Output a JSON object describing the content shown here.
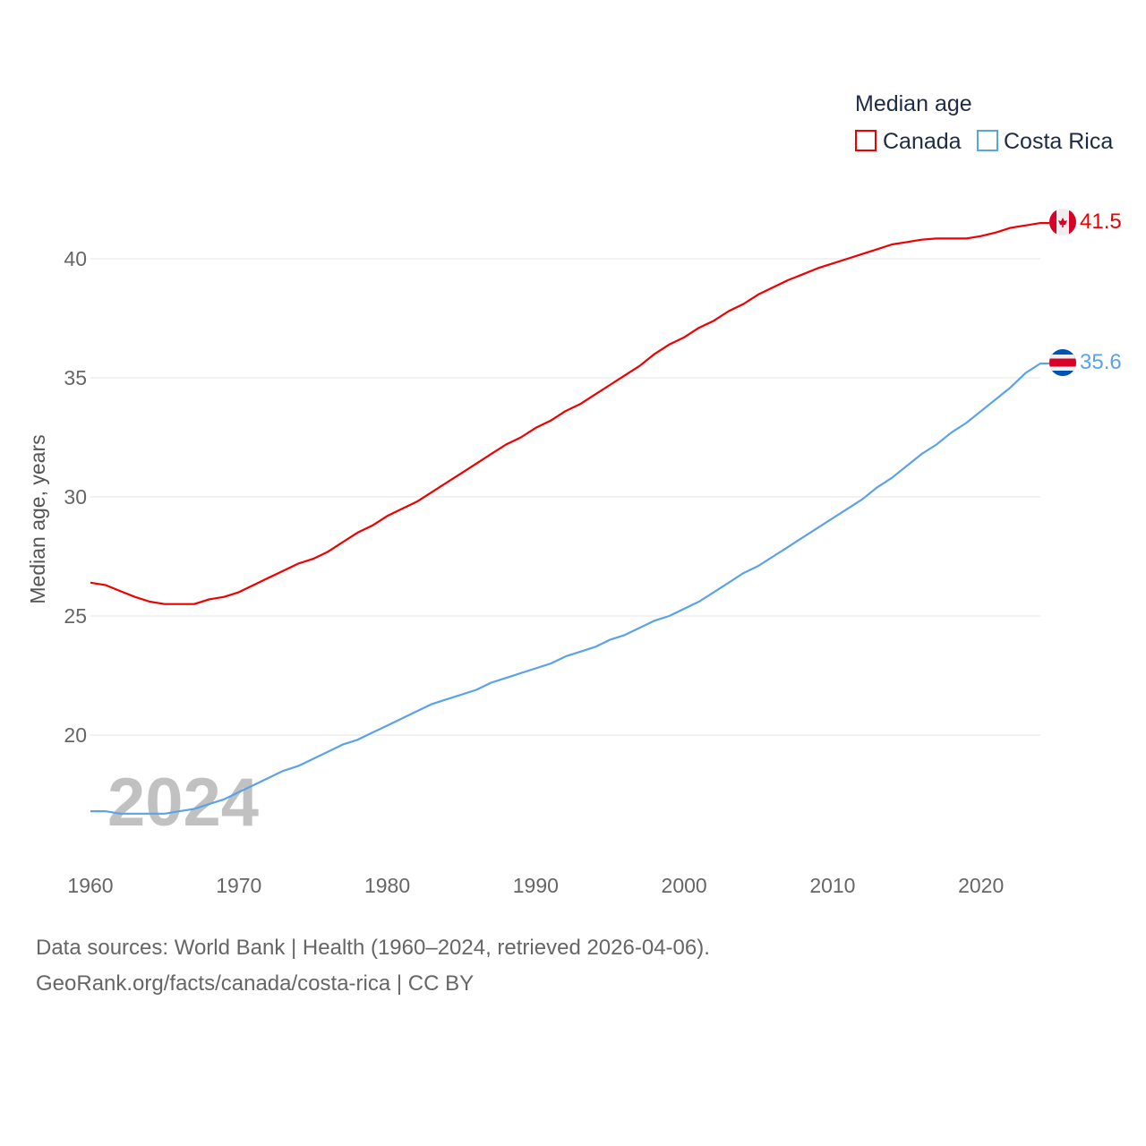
{
  "chart_data": {
    "type": "line",
    "title": "",
    "xlabel": "",
    "ylabel": "Median age, years",
    "xlim": [
      1960,
      2024
    ],
    "ylim": [
      15.5,
      42
    ],
    "yticks": [
      20,
      25,
      30,
      35,
      40
    ],
    "xticks": [
      1960,
      1970,
      1980,
      1990,
      2000,
      2010,
      2020
    ],
    "grid": true,
    "legend": {
      "title": "Median age",
      "placement": "top-right"
    },
    "year_watermark": "2024",
    "x": [
      1960,
      1961,
      1962,
      1963,
      1964,
      1965,
      1966,
      1967,
      1968,
      1969,
      1970,
      1971,
      1972,
      1973,
      1974,
      1975,
      1976,
      1977,
      1978,
      1979,
      1980,
      1981,
      1982,
      1983,
      1984,
      1985,
      1986,
      1987,
      1988,
      1989,
      1990,
      1991,
      1992,
      1993,
      1994,
      1995,
      1996,
      1997,
      1998,
      1999,
      2000,
      2001,
      2002,
      2003,
      2004,
      2005,
      2006,
      2007,
      2008,
      2009,
      2010,
      2011,
      2012,
      2013,
      2014,
      2015,
      2016,
      2017,
      2018,
      2019,
      2020,
      2021,
      2022,
      2023,
      2024
    ],
    "series": [
      {
        "name": "Canada",
        "color": "#ee0000",
        "end_label": "41.5",
        "flag": "canada",
        "values": [
          26.4,
          26.3,
          26.05,
          25.8,
          25.6,
          25.5,
          25.5,
          25.5,
          25.7,
          25.8,
          26.0,
          26.3,
          26.6,
          26.9,
          27.2,
          27.4,
          27.7,
          28.1,
          28.5,
          28.8,
          29.2,
          29.5,
          29.8,
          30.2,
          30.6,
          31.0,
          31.4,
          31.8,
          32.2,
          32.5,
          32.9,
          33.2,
          33.6,
          33.9,
          34.3,
          34.7,
          35.1,
          35.5,
          36.0,
          36.4,
          36.7,
          37.1,
          37.4,
          37.8,
          38.1,
          38.5,
          38.8,
          39.1,
          39.35,
          39.6,
          39.8,
          40.0,
          40.2,
          40.4,
          40.6,
          40.7,
          40.8,
          40.85,
          40.85,
          40.85,
          40.95,
          41.1,
          41.3,
          41.4,
          41.5
        ]
      },
      {
        "name": "Costa Rica",
        "color": "#5ba3e8",
        "end_label": "35.6",
        "flag": "costa-rica",
        "values": [
          16.8,
          16.8,
          16.7,
          16.7,
          16.7,
          16.7,
          16.8,
          16.9,
          17.1,
          17.3,
          17.6,
          17.9,
          18.2,
          18.5,
          18.7,
          19.0,
          19.3,
          19.6,
          19.8,
          20.1,
          20.4,
          20.7,
          21.0,
          21.3,
          21.5,
          21.7,
          21.9,
          22.2,
          22.4,
          22.6,
          22.8,
          23.0,
          23.3,
          23.5,
          23.7,
          24.0,
          24.2,
          24.5,
          24.8,
          25.0,
          25.3,
          25.6,
          26.0,
          26.4,
          26.8,
          27.1,
          27.5,
          27.9,
          28.3,
          28.7,
          29.1,
          29.5,
          29.9,
          30.4,
          30.8,
          31.3,
          31.8,
          32.2,
          32.7,
          33.1,
          33.6,
          34.1,
          34.6,
          35.2,
          35.6
        ]
      }
    ]
  },
  "footer": {
    "line1": "Data sources: World Bank | Health (1960–2024, retrieved 2026-04-06).",
    "line2": "GeoRank.org/facts/canada/costa-rica | CC BY"
  }
}
